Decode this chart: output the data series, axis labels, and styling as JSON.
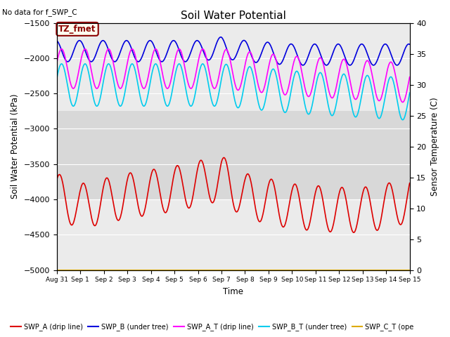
{
  "title": "Soil Water Potential",
  "top_left_text": "No data for f_SWP_C",
  "xlabel": "Time",
  "ylabel_left": "Soil Water Potential (kPa)",
  "ylabel_right": "Sensor Temperature (C)",
  "annotation_box": "TZ_fmet",
  "ylim_left": [
    -5000,
    -1500
  ],
  "ylim_right": [
    0,
    40
  ],
  "colors": {
    "SWP_A": "#dd0000",
    "SWP_B": "#0000dd",
    "SWP_A_T": "#ff00ff",
    "SWP_B_T": "#00ccee",
    "SWP_C_T": "#ddaa00",
    "bg_upper": "#ebebeb",
    "bg_middle": "#d8d8d8",
    "bg_lower": "#ebebeb"
  },
  "x_tick_labels": [
    "Aug 31",
    "Sep 1",
    "Sep 2",
    "Sep 3",
    "Sep 4",
    "Sep 5",
    "Sep 6",
    "Sep 7",
    "Sep 8",
    "Sep 9",
    "Sep 10",
    "Sep 11",
    "Sep 12",
    "Sep 13",
    "Sep 14",
    "Sep 15"
  ]
}
